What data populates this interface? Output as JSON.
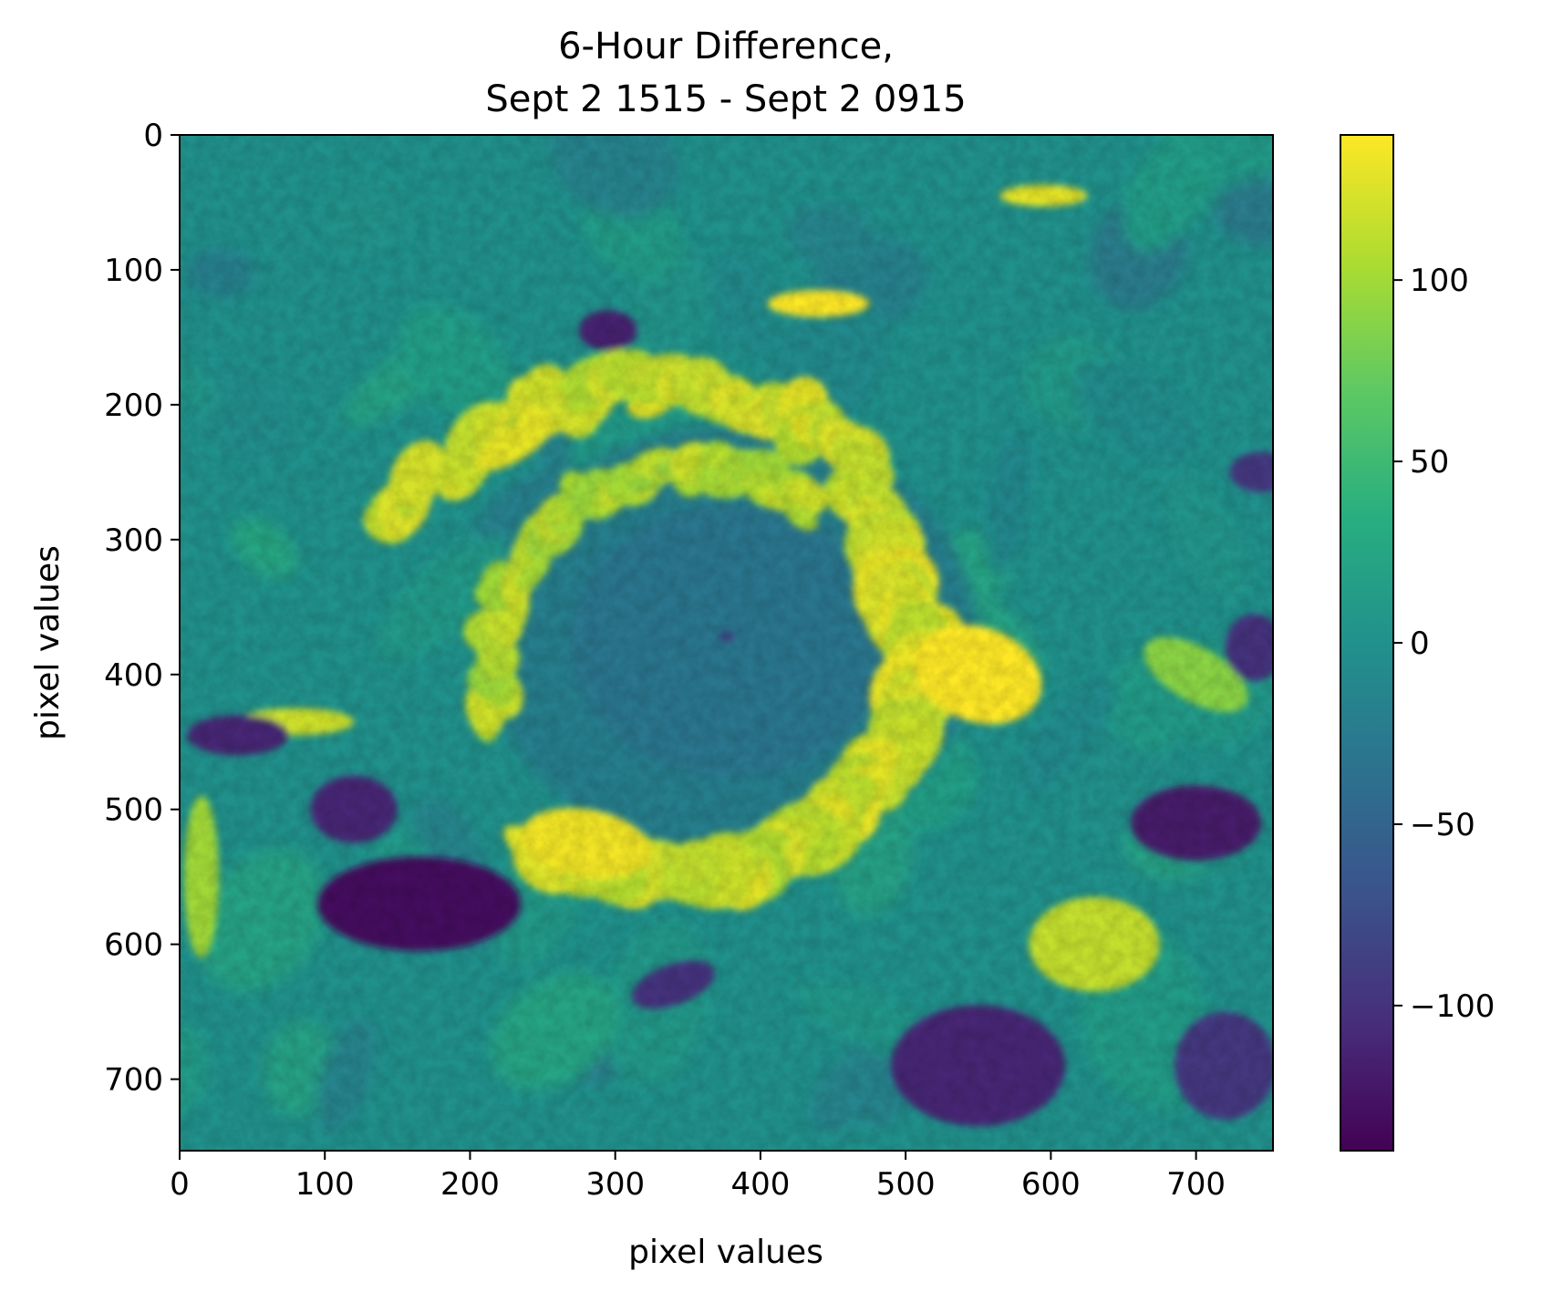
{
  "chart_data": {
    "type": "heatmap",
    "title_lines": [
      "6-Hour Difference,",
      "Sept 2 1515 - Sept 2 0915"
    ],
    "xlabel": "pixel values",
    "ylabel": "pixel values",
    "xlim": [
      0,
      753
    ],
    "ylim": [
      753,
      0
    ],
    "xticks": [
      0,
      100,
      200,
      300,
      400,
      500,
      600,
      700
    ],
    "yticks": [
      0,
      100,
      200,
      300,
      400,
      500,
      600,
      700
    ],
    "colormap": "viridis",
    "colorbar": {
      "range": [
        -140,
        140
      ],
      "ticks": [
        -100,
        -50,
        0,
        50,
        100
      ],
      "tick_labels": [
        "−100",
        "−50",
        "0",
        "50",
        "100"
      ]
    },
    "features": [
      {
        "name": "eye",
        "x": 375,
        "y": 372,
        "value": -80
      },
      {
        "name": "inner spiral band (north/west)",
        "value": 120
      },
      {
        "name": "east eyewall band",
        "x": 540,
        "y": 400,
        "value": 130
      },
      {
        "name": "south-west band",
        "x": 290,
        "y": 530,
        "value": 130
      },
      {
        "name": "dry region west",
        "x": 160,
        "y": 570,
        "value": -130
      },
      {
        "name": "dry region east",
        "x": 700,
        "y": 510,
        "value": -120
      },
      {
        "name": "dry region south",
        "x": 570,
        "y": 680,
        "value": -110
      },
      {
        "name": "background",
        "value": 0
      }
    ]
  },
  "colors": {
    "viridis_low": "#440154",
    "viridis_mid": "#21918c",
    "viridis_high": "#fde725"
  }
}
